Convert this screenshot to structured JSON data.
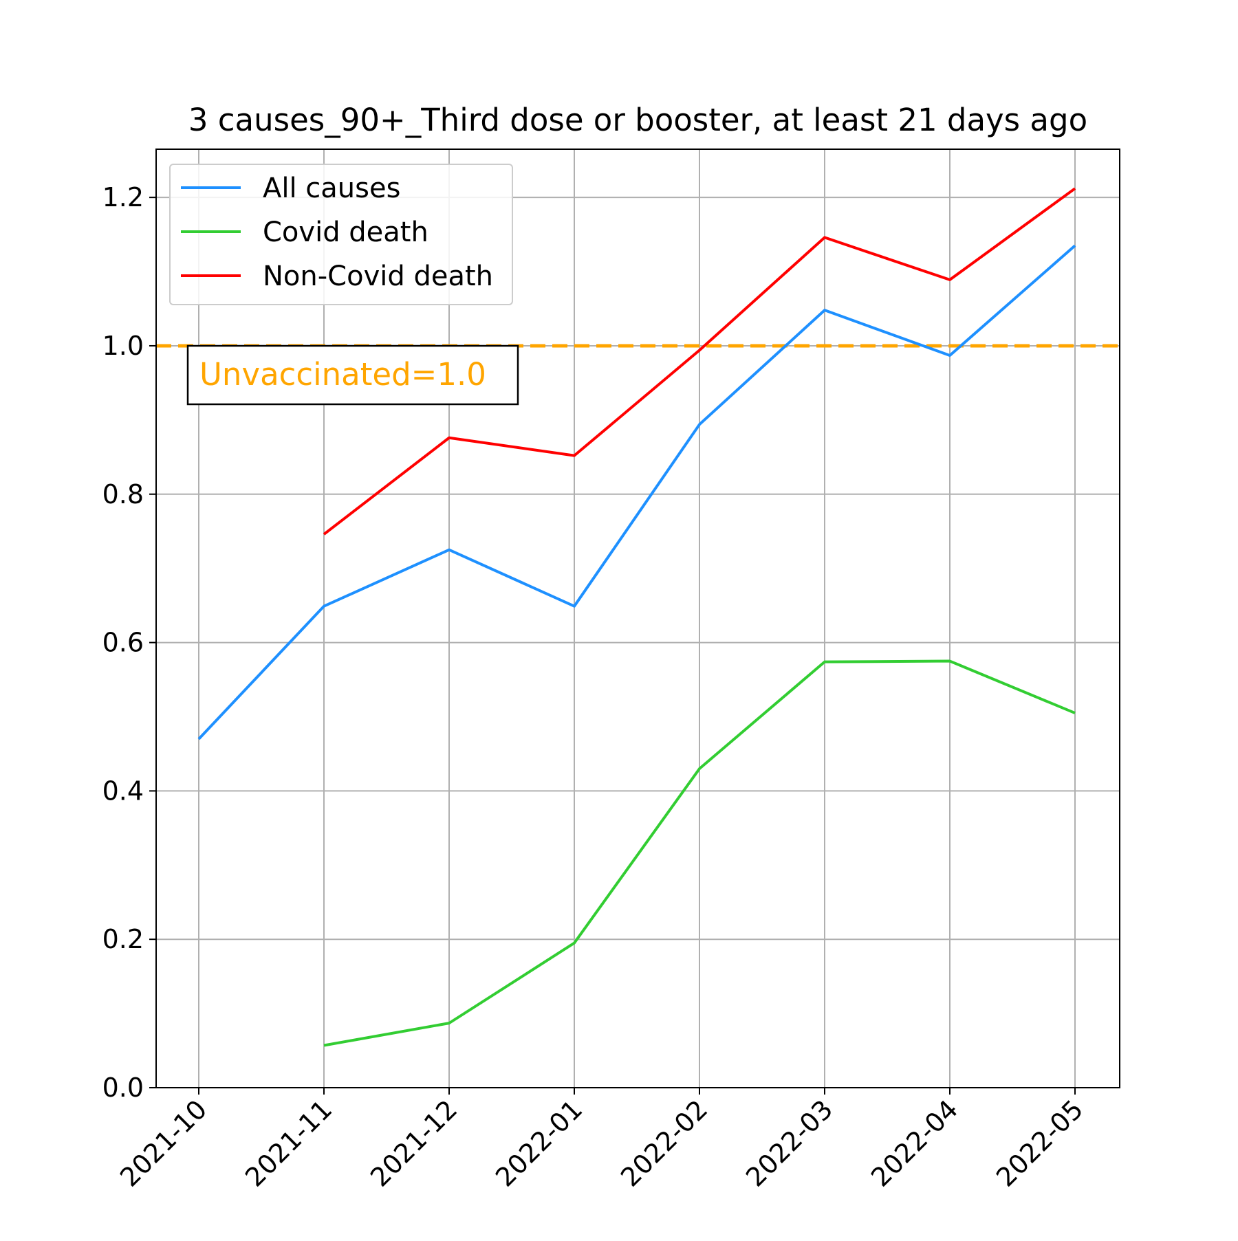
{
  "chart_data": {
    "type": "line",
    "title": "3 causes_90+_Third dose or booster, at least 21 days ago",
    "xlabel": "",
    "ylabel": "",
    "categories": [
      "2021-10",
      "2021-11",
      "2021-12",
      "2022-01",
      "2022-02",
      "2022-03",
      "2022-04",
      "2022-05"
    ],
    "ylim": [
      0.0,
      1.265
    ],
    "yticks": [
      "0.0",
      "0.2",
      "0.4",
      "0.6",
      "0.8",
      "1.0",
      "1.2"
    ],
    "grid": true,
    "legend_position": "top-left",
    "series": [
      {
        "name": "All causes",
        "color": "#1E90FF",
        "values": [
          0.47,
          0.649,
          0.725,
          0.649,
          0.894,
          1.048,
          0.987,
          1.135
        ]
      },
      {
        "name": "Covid death",
        "color": "#32CD32",
        "values": [
          null,
          0.057,
          0.087,
          0.195,
          0.43,
          0.574,
          0.575,
          0.505
        ]
      },
      {
        "name": "Non-Covid death",
        "color": "#FF0000",
        "values": [
          null,
          0.746,
          0.876,
          0.852,
          0.994,
          1.146,
          1.089,
          1.212
        ]
      }
    ],
    "reference_line": {
      "y": 1.0,
      "color": "#FFA500",
      "style": "dashed"
    },
    "annotation": {
      "text": "Unvaccinated=1.0",
      "color": "#FFA500"
    }
  }
}
